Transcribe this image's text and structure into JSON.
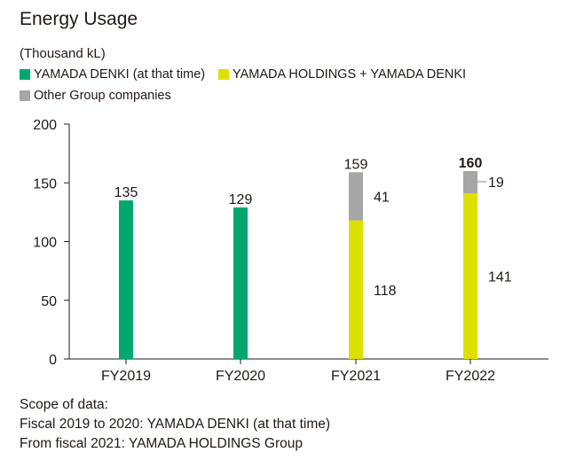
{
  "title": "Energy Usage",
  "unit_label": "(Thousand kL)",
  "legend": [
    {
      "label": "YAMADA DENKI (at that time)",
      "color": "#00a870"
    },
    {
      "label": "YAMADA HOLDINGS + YAMADA DENKI",
      "color": "#dde000"
    },
    {
      "label": "Other Group companies",
      "color": "#a6a6a6"
    }
  ],
  "chart_data": {
    "type": "bar",
    "stacked": true,
    "categories": [
      "FY2019",
      "FY2020",
      "FY2021",
      "FY2022"
    ],
    "series": [
      {
        "name": "YAMADA DENKI (at that time)",
        "color": "#00a870",
        "values": [
          135,
          129,
          null,
          null
        ]
      },
      {
        "name": "YAMADA HOLDINGS + YAMADA DENKI",
        "color": "#dde000",
        "values": [
          null,
          null,
          118,
          141
        ]
      },
      {
        "name": "Other Group companies",
        "color": "#a6a6a6",
        "values": [
          null,
          null,
          41,
          19
        ]
      }
    ],
    "totals": [
      135,
      129,
      159,
      160
    ],
    "highlight_total_index": 3,
    "ylim": [
      0,
      200
    ],
    "yticks": [
      0,
      50,
      100,
      150,
      200
    ],
    "grid": false
  },
  "footnotes": [
    "Scope of data:",
    "Fiscal 2019 to 2020: YAMADA DENKI (at that time)",
    "From fiscal 2021: YAMADA HOLDINGS Group"
  ]
}
